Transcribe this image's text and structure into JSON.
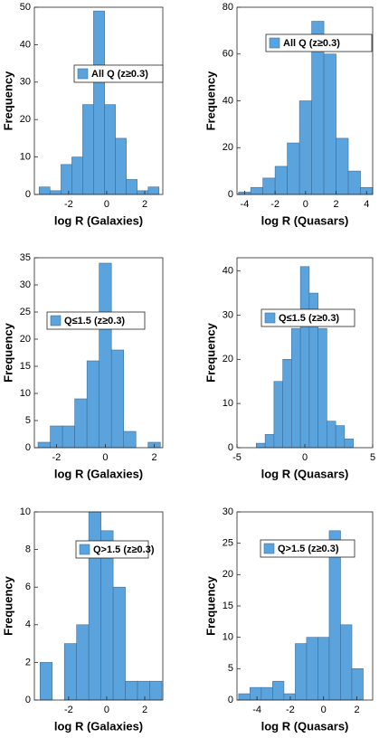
{
  "chart_data": [
    {
      "type": "histogram",
      "xlabel": "log R (Galaxies)",
      "ylabel": "Frequency",
      "bins": [
        -3.55,
        -2.98,
        -2.4,
        -1.83,
        -1.26,
        -0.69,
        -0.11,
        0.46,
        1.03,
        1.6,
        2.18,
        2.75
      ],
      "series": [
        {
          "name": "All Q (z≥0.3)",
          "color": "#5ba3dc",
          "values": [
            2,
            1,
            8,
            10,
            24,
            49,
            24,
            15,
            4,
            1,
            2
          ]
        }
      ],
      "xlim": [
        -3.8,
        2.95
      ],
      "xticks": [
        -2,
        0,
        2
      ],
      "ylim": [
        0,
        50
      ],
      "yticks": [
        0,
        10,
        20,
        30,
        40,
        50
      ]
    },
    {
      "type": "histogram",
      "xlabel": "log R (Quasars)",
      "ylabel": "Frequency",
      "bins": [
        -4.4,
        -3.6,
        -2.8,
        -2.0,
        -1.2,
        -0.4,
        0.4,
        1.2,
        2.0,
        2.8,
        3.6,
        4.4
      ],
      "series": [
        {
          "name": "All Q (z≥0.3)",
          "color": "#5ba3dc",
          "values": [
            1,
            3,
            7,
            12,
            22,
            40,
            74,
            60,
            24,
            10,
            3
          ]
        }
      ],
      "xlim": [
        -4.5,
        4.4
      ],
      "xticks": [
        -4,
        -2,
        0,
        2,
        4
      ],
      "ylim": [
        0,
        80
      ],
      "yticks": [
        0,
        20,
        40,
        60,
        80
      ]
    },
    {
      "type": "histogram",
      "xlabel": "log R (Galaxies)",
      "ylabel": "Frequency",
      "bins": [
        -2.75,
        -2.25,
        -1.75,
        -1.25,
        -0.75,
        -0.25,
        0.25,
        0.75,
        1.25,
        1.75,
        2.25
      ],
      "series": [
        {
          "name": "Q≤1.5 (z≥0.3)",
          "color": "#5ba3dc",
          "values": [
            1,
            4,
            4,
            9,
            16,
            34,
            18,
            3,
            0,
            1
          ]
        }
      ],
      "xlim": [
        -2.9,
        2.35
      ],
      "xticks": [
        -2,
        0,
        2
      ],
      "ylim": [
        0,
        35
      ],
      "yticks": [
        0,
        5,
        10,
        15,
        20,
        25,
        30,
        35
      ]
    },
    {
      "type": "histogram",
      "xlabel": "log R (Quasars)",
      "ylabel": "Frequency",
      "bins": [
        -3.575,
        -2.925,
        -2.275,
        -1.625,
        -0.975,
        -0.325,
        0.325,
        0.975,
        1.625,
        2.275,
        2.925,
        3.575
      ],
      "series": [
        {
          "name": "Q≤1.5 (z≥0.3)",
          "color": "#5ba3dc",
          "values": [
            1,
            3,
            15,
            20,
            27,
            41,
            35,
            27,
            6,
            5,
            2
          ]
        }
      ],
      "xlim": [
        -5,
        5
      ],
      "xticks": [
        -5,
        0,
        5
      ],
      "ylim": [
        0,
        43
      ],
      "yticks": [
        0,
        10,
        20,
        30,
        40
      ]
    },
    {
      "type": "histogram",
      "xlabel": "log R (Galaxies)",
      "ylabel": "Frequency",
      "bins": [
        -3.5,
        -2.86,
        -2.22,
        -1.58,
        -0.94,
        -0.3,
        0.34,
        0.98,
        1.62,
        2.26,
        2.9
      ],
      "series": [
        {
          "name": "Q>1.5 (z≥0.3)",
          "color": "#5ba3dc",
          "values": [
            2,
            0,
            3,
            4,
            10,
            9,
            6,
            1,
            1,
            1
          ]
        }
      ],
      "xlim": [
        -3.8,
        2.95
      ],
      "xticks": [
        -2,
        0,
        2
      ],
      "ylim": [
        0,
        10
      ],
      "yticks": [
        0,
        2,
        4,
        6,
        8,
        10
      ]
    },
    {
      "type": "histogram",
      "xlabel": "log R (Quasars)",
      "ylabel": "Frequency",
      "bins": [
        -5.1,
        -4.42,
        -3.74,
        -3.06,
        -2.38,
        -1.7,
        -1.02,
        -0.34,
        0.34,
        1.02,
        1.7,
        2.38
      ],
      "series": [
        {
          "name": "Q>1.5 (z≥0.3)",
          "color": "#5ba3dc",
          "values": [
            1,
            2,
            2,
            3,
            1,
            9,
            10,
            10,
            27,
            12,
            5
          ]
        }
      ],
      "xlim": [
        -5.2,
        2.95
      ],
      "xticks": [
        -4,
        -2,
        0,
        2
      ],
      "ylim": [
        0,
        30
      ],
      "yticks": [
        0,
        5,
        10,
        15,
        20,
        25,
        30
      ]
    }
  ]
}
